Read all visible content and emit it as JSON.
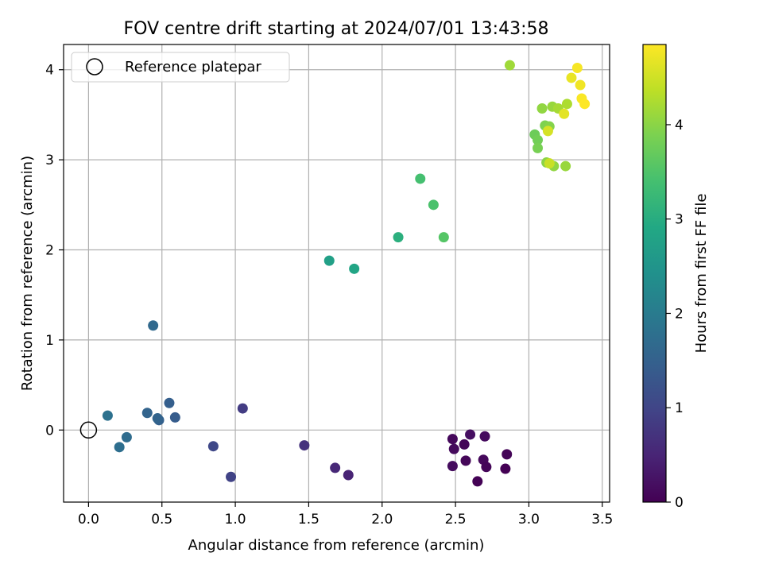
{
  "chart_data": {
    "type": "scatter",
    "title": "FOV centre drift starting at 2024/07/01 13:43:58",
    "xlabel": "Angular distance from reference (arcmin)",
    "ylabel": "Rotation from reference (arcmin)",
    "xlim": [
      -0.17,
      3.55
    ],
    "ylim": [
      -0.8,
      4.28
    ],
    "xticks": [
      0.0,
      0.5,
      1.0,
      1.5,
      2.0,
      2.5,
      3.0,
      3.5
    ],
    "xtick_labels": [
      "0.0",
      "0.5",
      "1.0",
      "1.5",
      "2.0",
      "2.5",
      "3.0",
      "3.5"
    ],
    "yticks": [
      0,
      1,
      2,
      3,
      4
    ],
    "ytick_labels": [
      "0",
      "1",
      "2",
      "3",
      "4"
    ],
    "grid": true,
    "legend": {
      "placement": "top-left",
      "entries": [
        "Reference platepar"
      ]
    },
    "reference_point": {
      "x": 0.0,
      "y": 0.0
    },
    "colorbar": {
      "label": "Hours from first FF file",
      "range": [
        0,
        4.85
      ],
      "ticks": [
        0,
        1,
        2,
        3,
        4
      ],
      "tick_labels": [
        "0",
        "1",
        "2",
        "3",
        "4"
      ],
      "colormap": "viridis"
    },
    "points": [
      {
        "x": 2.48,
        "y": -0.1,
        "c": 0.1
      },
      {
        "x": 2.49,
        "y": -0.21,
        "c": 0.12
      },
      {
        "x": 2.48,
        "y": -0.4,
        "c": 0.15
      },
      {
        "x": 2.56,
        "y": -0.16,
        "c": 0.05
      },
      {
        "x": 2.57,
        "y": -0.34,
        "c": 0.08
      },
      {
        "x": 2.6,
        "y": -0.05,
        "c": 0.18
      },
      {
        "x": 2.65,
        "y": -0.57,
        "c": 0.02
      },
      {
        "x": 2.69,
        "y": -0.33,
        "c": 0.1
      },
      {
        "x": 2.7,
        "y": -0.07,
        "c": 0.14
      },
      {
        "x": 2.71,
        "y": -0.41,
        "c": 0.06
      },
      {
        "x": 2.84,
        "y": -0.43,
        "c": 0.0
      },
      {
        "x": 2.85,
        "y": -0.27,
        "c": 0.04
      },
      {
        "x": 1.68,
        "y": -0.42,
        "c": 0.55
      },
      {
        "x": 1.77,
        "y": -0.5,
        "c": 0.48
      },
      {
        "x": 1.47,
        "y": -0.17,
        "c": 0.7
      },
      {
        "x": 1.05,
        "y": 0.24,
        "c": 0.85
      },
      {
        "x": 0.97,
        "y": -0.52,
        "c": 0.95
      },
      {
        "x": 0.85,
        "y": -0.18,
        "c": 1.05
      },
      {
        "x": 0.59,
        "y": 0.14,
        "c": 1.4
      },
      {
        "x": 0.55,
        "y": 0.3,
        "c": 1.45
      },
      {
        "x": 0.48,
        "y": 0.11,
        "c": 1.5
      },
      {
        "x": 0.47,
        "y": 0.13,
        "c": 1.55
      },
      {
        "x": 0.4,
        "y": 0.19,
        "c": 1.55
      },
      {
        "x": 0.44,
        "y": 1.16,
        "c": 1.65
      },
      {
        "x": 0.26,
        "y": -0.08,
        "c": 1.7
      },
      {
        "x": 0.21,
        "y": -0.19,
        "c": 1.75
      },
      {
        "x": 0.13,
        "y": 0.16,
        "c": 1.8
      },
      {
        "x": 1.64,
        "y": 1.88,
        "c": 2.75
      },
      {
        "x": 1.81,
        "y": 1.79,
        "c": 2.85
      },
      {
        "x": 2.11,
        "y": 2.14,
        "c": 3.05
      },
      {
        "x": 2.26,
        "y": 2.79,
        "c": 3.4
      },
      {
        "x": 2.35,
        "y": 2.5,
        "c": 3.45
      },
      {
        "x": 2.42,
        "y": 2.14,
        "c": 3.55
      },
      {
        "x": 3.04,
        "y": 3.28,
        "c": 3.75
      },
      {
        "x": 3.06,
        "y": 3.22,
        "c": 3.8
      },
      {
        "x": 3.06,
        "y": 3.13,
        "c": 3.85
      },
      {
        "x": 3.11,
        "y": 3.38,
        "c": 3.9
      },
      {
        "x": 3.14,
        "y": 3.37,
        "c": 3.95
      },
      {
        "x": 3.12,
        "y": 2.97,
        "c": 4.0
      },
      {
        "x": 3.09,
        "y": 3.57,
        "c": 4.05
      },
      {
        "x": 3.17,
        "y": 2.93,
        "c": 4.05
      },
      {
        "x": 3.25,
        "y": 2.93,
        "c": 4.1
      },
      {
        "x": 3.16,
        "y": 3.59,
        "c": 4.1
      },
      {
        "x": 2.87,
        "y": 4.05,
        "c": 4.15
      },
      {
        "x": 3.2,
        "y": 3.57,
        "c": 4.2
      },
      {
        "x": 3.26,
        "y": 3.62,
        "c": 4.25
      },
      {
        "x": 3.14,
        "y": 2.96,
        "c": 4.45
      },
      {
        "x": 3.13,
        "y": 3.32,
        "c": 4.55
      },
      {
        "x": 3.24,
        "y": 3.51,
        "c": 4.65
      },
      {
        "x": 3.29,
        "y": 3.91,
        "c": 4.7
      },
      {
        "x": 3.35,
        "y": 3.83,
        "c": 4.75
      },
      {
        "x": 3.33,
        "y": 4.02,
        "c": 4.8
      },
      {
        "x": 3.36,
        "y": 3.68,
        "c": 4.82
      },
      {
        "x": 3.38,
        "y": 3.62,
        "c": 4.85
      }
    ]
  }
}
